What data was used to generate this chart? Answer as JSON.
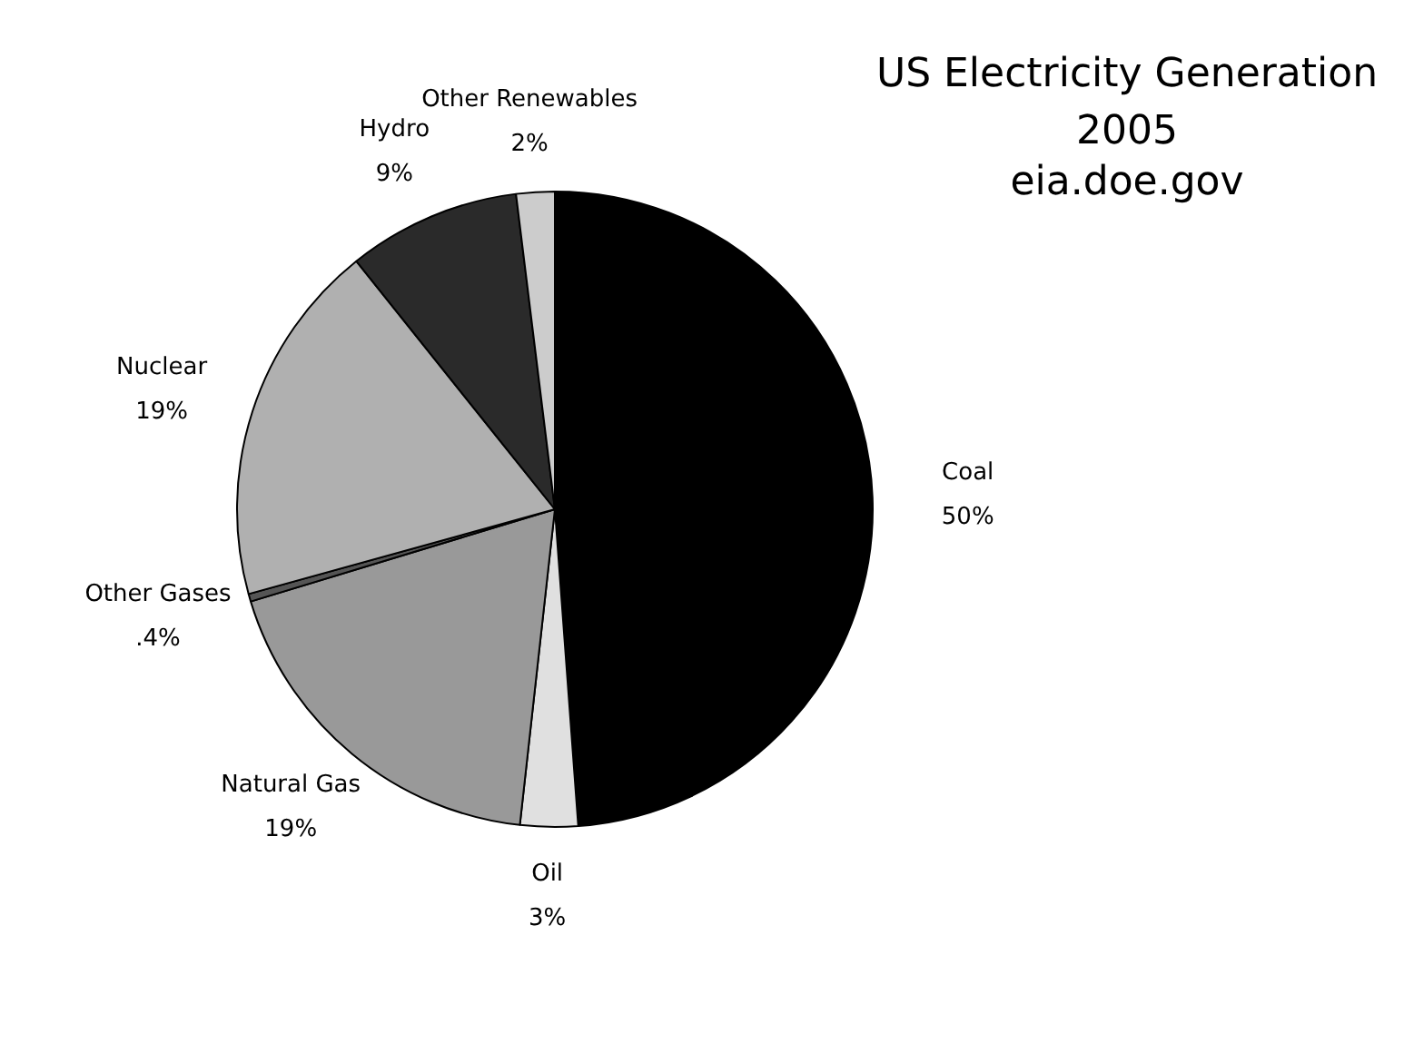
{
  "chart_data": {
    "type": "pie",
    "title": "US Electricity Generation",
    "subtitle": "2005",
    "annotations": [
      "eia.doe.gov"
    ],
    "categories": [
      "Coal",
      "Oil",
      "Natural Gas",
      "Other Gases",
      "Nuclear",
      "Hydro",
      "Other Renewables"
    ],
    "values": [
      50,
      3,
      19,
      0.4,
      19,
      9,
      2
    ],
    "value_labels": [
      "50%",
      "3%",
      "19%",
      ".4%",
      "19%",
      "9%",
      "2%"
    ],
    "colors": [
      "#000000",
      "#e0e0e0",
      "#999999",
      "#555555",
      "#b0b0b0",
      "#2a2a2a",
      "#cccccc"
    ]
  }
}
